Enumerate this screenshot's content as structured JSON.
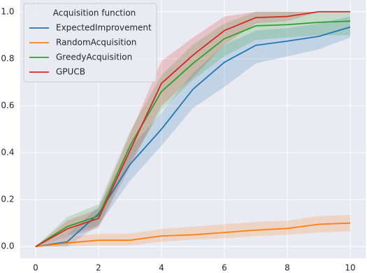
{
  "chart_data": {
    "type": "line",
    "x": [
      0,
      1,
      2,
      3,
      4,
      5,
      6,
      7,
      8,
      9,
      10
    ],
    "series": [
      {
        "name": "ExpectedImprovement",
        "color": "#1f77b4",
        "values": [
          0,
          0.02,
          0.14,
          0.35,
          0.5,
          0.67,
          0.785,
          0.857,
          0.875,
          0.895,
          0.935
        ],
        "lower": [
          0,
          0.0,
          0.09,
          0.28,
          0.43,
          0.59,
          0.68,
          0.78,
          0.81,
          0.84,
          0.89
        ],
        "upper": [
          0,
          0.05,
          0.17,
          0.42,
          0.57,
          0.74,
          0.86,
          0.92,
          0.93,
          0.95,
          0.98
        ]
      },
      {
        "name": "RandomAcquisition",
        "color": "#ff7f0e",
        "values": [
          0,
          0.015,
          0.027,
          0.027,
          0.045,
          0.05,
          0.06,
          0.07,
          0.077,
          0.095,
          0.1
        ],
        "lower": [
          0,
          0.0,
          0.005,
          0.005,
          0.02,
          0.03,
          0.035,
          0.045,
          0.05,
          0.06,
          0.065
        ],
        "upper": [
          0,
          0.04,
          0.055,
          0.055,
          0.075,
          0.085,
          0.095,
          0.105,
          0.11,
          0.13,
          0.135
        ]
      },
      {
        "name": "GreedyAcquisition",
        "color": "#2ca02c",
        "values": [
          0,
          0.085,
          0.13,
          0.43,
          0.66,
          0.78,
          0.885,
          0.94,
          0.945,
          0.955,
          0.96
        ],
        "lower": [
          0,
          0.05,
          0.09,
          0.36,
          0.58,
          0.71,
          0.81,
          0.88,
          0.89,
          0.9,
          0.9
        ],
        "upper": [
          0,
          0.125,
          0.18,
          0.49,
          0.73,
          0.86,
          0.95,
          1.0,
          1.0,
          1.0,
          1.0
        ]
      },
      {
        "name": "GPUCB",
        "color": "#d62728",
        "values": [
          0,
          0.075,
          0.12,
          0.41,
          0.695,
          0.815,
          0.92,
          0.975,
          0.98,
          1.0,
          1.0
        ],
        "lower": [
          0,
          0.04,
          0.08,
          0.34,
          0.6,
          0.72,
          0.86,
          0.95,
          0.96,
          1.0,
          1.0
        ],
        "upper": [
          0,
          0.11,
          0.16,
          0.48,
          0.79,
          0.89,
          0.98,
          1.0,
          1.0,
          1.0,
          1.0
        ]
      }
    ],
    "legend_title": "Acquisition function",
    "legend_position": "upper-left",
    "xlim": [
      -0.5,
      10.5
    ],
    "ylim": [
      -0.05,
      1.05
    ],
    "xticks": [
      0,
      2,
      4,
      6,
      8,
      10
    ],
    "yticks": [
      {
        "value": 0,
        "label": "0.0"
      },
      0.2,
      0.4,
      0.6,
      0.8,
      {
        "value": 1,
        "label": "1.0"
      }
    ],
    "grid": true
  }
}
